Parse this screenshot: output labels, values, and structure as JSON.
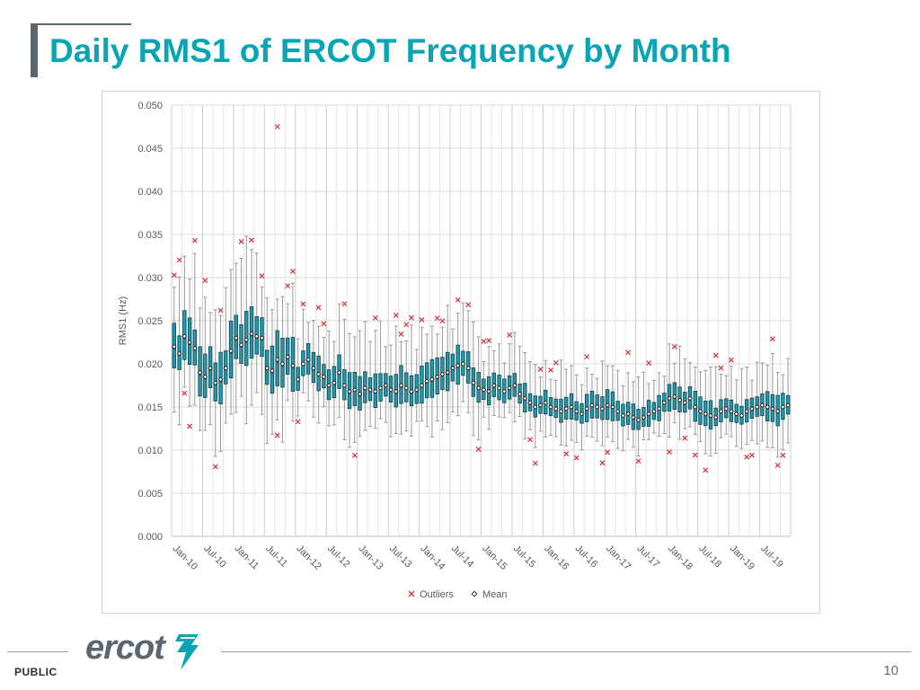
{
  "slide": {
    "title": "Daily RMS1 of ERCOT Frequency by Month",
    "footer_label": "PUBLIC",
    "page_number": "10",
    "logo_text": "ercot",
    "colors": {
      "title": "#0AA5B5",
      "box_fill": "#1A9CAE",
      "outlier": "#D6303A",
      "whisker": "#9A9A9A"
    }
  },
  "chart_data": {
    "type": "boxplot",
    "title": "",
    "ylabel": "RMS1 (Hz)",
    "ylim": [
      0,
      0.05
    ],
    "yticks": [
      "0.000",
      "0.005",
      "0.010",
      "0.015",
      "0.020",
      "0.025",
      "0.030",
      "0.035",
      "0.040",
      "0.045",
      "0.050"
    ],
    "xtick_labels": [
      "Jan-10",
      "Jul-10",
      "Jan-11",
      "Jul-11",
      "Jan-12",
      "Jul-12",
      "Jan-13",
      "Jul-13",
      "Jan-14",
      "Jul-14",
      "Jan-15",
      "Jul-15",
      "Jan-16",
      "Jul-16",
      "Jan-17",
      "Jul-17",
      "Jan-18",
      "Jul-18",
      "Jan-19",
      "Jul-19"
    ],
    "start_month": "Jan-10",
    "end_month": "Dec-19",
    "legend": {
      "position": "bottom",
      "items": [
        "Outliers",
        "Mean"
      ]
    },
    "grid": true,
    "mean": [
      0.022,
      0.0212,
      0.0232,
      0.0225,
      0.0218,
      0.019,
      0.0185,
      0.0195,
      0.0178,
      0.0182,
      0.0195,
      0.0215,
      0.023,
      0.0222,
      0.0228,
      0.0235,
      0.0232,
      0.023,
      0.0195,
      0.0192,
      0.0205,
      0.02,
      0.0208,
      0.0198,
      0.0182,
      0.02,
      0.0205,
      0.0195,
      0.0188,
      0.0185,
      0.0175,
      0.0178,
      0.019,
      0.0175,
      0.0168,
      0.017,
      0.0165,
      0.0172,
      0.017,
      0.0168,
      0.0172,
      0.0175,
      0.017,
      0.0168,
      0.0175,
      0.0172,
      0.0168,
      0.017,
      0.0175,
      0.018,
      0.0182,
      0.0185,
      0.0188,
      0.019,
      0.0195,
      0.0198,
      0.02,
      0.0195,
      0.0178,
      0.0172,
      0.017,
      0.0168,
      0.0175,
      0.0172,
      0.0168,
      0.0172,
      0.0175,
      0.0165,
      0.016,
      0.0155,
      0.015,
      0.0152,
      0.0155,
      0.015,
      0.0148,
      0.0145,
      0.0148,
      0.015,
      0.0145,
      0.0142,
      0.0148,
      0.0152,
      0.015,
      0.0148,
      0.0152,
      0.015,
      0.0145,
      0.014,
      0.0142,
      0.0138,
      0.0135,
      0.0138,
      0.0142,
      0.0145,
      0.0148,
      0.0155,
      0.016,
      0.0162,
      0.0158,
      0.0155,
      0.016,
      0.015,
      0.0145,
      0.0142,
      0.014,
      0.0138,
      0.0145,
      0.0148,
      0.0145,
      0.0142,
      0.014,
      0.0145,
      0.0148,
      0.015,
      0.0152,
      0.015,
      0.0148,
      0.0145,
      0.015,
      0.0152
    ]
  }
}
